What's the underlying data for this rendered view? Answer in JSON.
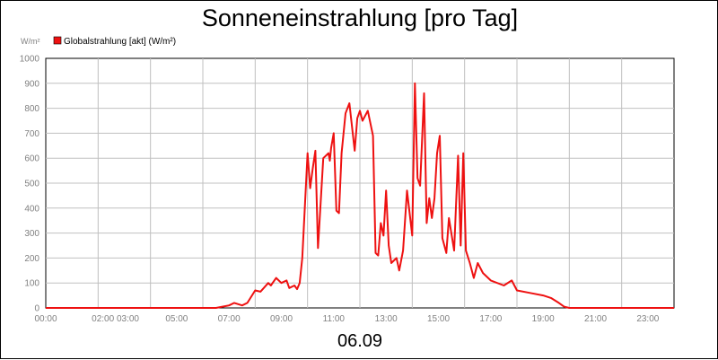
{
  "chart_data": {
    "type": "line",
    "title": "Sonneneinstrahlung [pro Tag]",
    "date_label": "06.09",
    "y_unit_label": "W/m²",
    "ylim": [
      0,
      1000
    ],
    "y_ticks": [
      "0",
      "100",
      "200",
      "300",
      "400",
      "500",
      "600",
      "700",
      "800",
      "900",
      "1000"
    ],
    "x_tick_labels": [
      {
        "h": 0,
        "label": "00:00"
      },
      {
        "h": 2.66,
        "label": "02:00 03:00"
      },
      {
        "h": 5,
        "label": "05:00"
      },
      {
        "h": 7,
        "label": "07:00"
      },
      {
        "h": 9,
        "label": "09:00"
      },
      {
        "h": 11,
        "label": "11:00"
      },
      {
        "h": 13,
        "label": "13:00"
      },
      {
        "h": 15,
        "label": "15:00"
      },
      {
        "h": 17,
        "label": "17:00"
      },
      {
        "h": 19,
        "label": "19:00"
      },
      {
        "h": 21,
        "label": "21:00"
      },
      {
        "h": 23,
        "label": "23:00"
      }
    ],
    "x_grid_hours": [
      0,
      2,
      4,
      6,
      8,
      10,
      12,
      14,
      16,
      18,
      20,
      22,
      24
    ],
    "grid": true,
    "legend_position": "top-left",
    "series": [
      {
        "name": "Globalstrahlung [akt] (W/m²)",
        "color": "#ee1111",
        "x": [
          0,
          6.5,
          7.0,
          7.2,
          7.5,
          7.7,
          8.0,
          8.2,
          8.5,
          8.6,
          8.8,
          9.0,
          9.2,
          9.3,
          9.5,
          9.6,
          9.7,
          9.8,
          10.0,
          10.1,
          10.2,
          10.3,
          10.4,
          10.6,
          10.8,
          10.85,
          10.9,
          11.0,
          11.1,
          11.2,
          11.3,
          11.45,
          11.6,
          11.8,
          11.9,
          12.0,
          12.1,
          12.3,
          12.5,
          12.6,
          12.7,
          12.8,
          12.9,
          13.0,
          13.1,
          13.2,
          13.4,
          13.5,
          13.65,
          13.8,
          14.0,
          14.1,
          14.2,
          14.3,
          14.45,
          14.55,
          14.65,
          14.75,
          14.85,
          14.95,
          15.05,
          15.15,
          15.3,
          15.4,
          15.6,
          15.75,
          15.85,
          15.95,
          16.05,
          16.2,
          16.35,
          16.5,
          16.7,
          17.0,
          17.5,
          17.8,
          18.0,
          18.5,
          19.0,
          19.3,
          19.6,
          19.8,
          20.0,
          24.0
        ],
        "values": [
          0,
          0,
          10,
          20,
          10,
          20,
          70,
          65,
          100,
          90,
          120,
          100,
          110,
          80,
          90,
          75,
          100,
          200,
          620,
          480,
          560,
          630,
          240,
          600,
          620,
          590,
          640,
          700,
          390,
          380,
          620,
          780,
          820,
          630,
          760,
          790,
          750,
          790,
          690,
          220,
          210,
          340,
          290,
          470,
          250,
          180,
          200,
          150,
          230,
          470,
          290,
          900,
          520,
          490,
          860,
          340,
          440,
          360,
          440,
          620,
          690,
          280,
          220,
          360,
          230,
          610,
          250,
          620,
          230,
          180,
          120,
          180,
          140,
          110,
          90,
          110,
          70,
          60,
          50,
          40,
          20,
          5,
          0,
          0
        ]
      }
    ]
  }
}
